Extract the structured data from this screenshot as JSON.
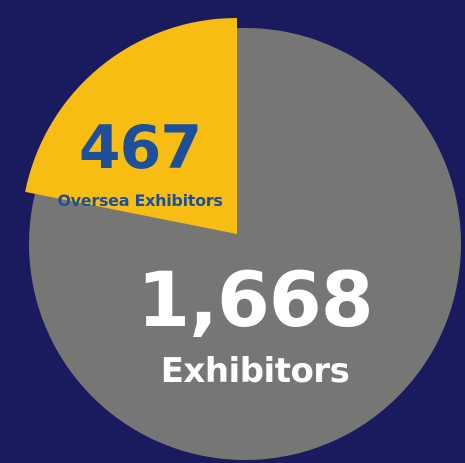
{
  "chart_data": {
    "type": "pie",
    "slices": [
      {
        "label": "Oversea Exhibitors",
        "value": 467,
        "value_text": "467",
        "color": "#f7bd13"
      },
      {
        "label": "Exhibitors",
        "value": 1668,
        "value_text": "1,668",
        "color": "#767775"
      }
    ],
    "background": "#1a1b5e",
    "label_colors": {
      "overseas": "#1d4f9a",
      "total": "#ffffff"
    }
  }
}
